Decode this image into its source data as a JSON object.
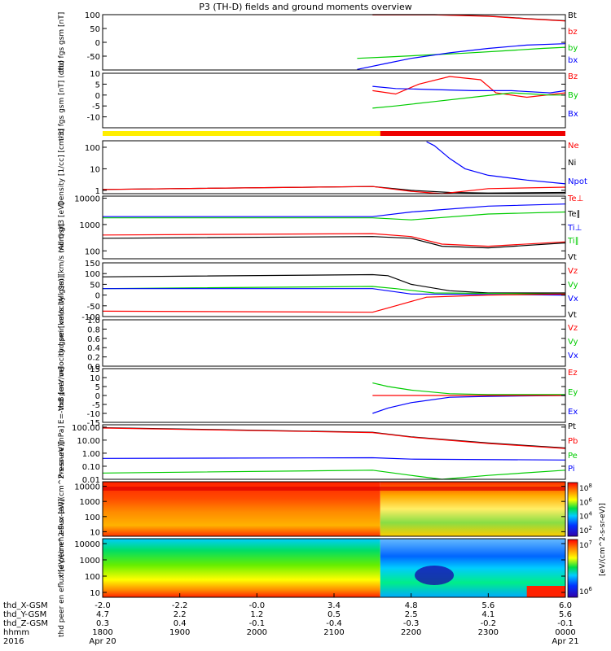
{
  "title": "P3 (TH-D) fields and ground moments overview",
  "x_ticks": [
    "1800",
    "1900",
    "2000",
    "2100",
    "2200",
    "2300",
    "0000"
  ],
  "footer": {
    "row_labels": [
      "thd_X-GSM",
      "thd_Y-GSM",
      "thd_Z-GSM",
      "hhmm",
      "2016"
    ],
    "positions": [
      [
        "-2.0",
        "-2.2",
        "-0.0",
        "3.4",
        "4.8",
        "5.6",
        "6.0"
      ],
      [
        "4.7",
        "2.2",
        "1.2",
        "0.5",
        "2.5",
        "4.1",
        "5.6"
      ],
      [
        "0.3",
        "0.4",
        "-0.1",
        "-0.4",
        "-0.3",
        "-0.2",
        "-0.1"
      ]
    ],
    "date_start": "Apr 20",
    "date_end": "Apr 21"
  },
  "colorbars": [
    {
      "label": "[eV/(cm^2-s-sr-eV)]",
      "ticks": [
        "10^8",
        "10^6",
        "10^4",
        "10^2"
      ]
    },
    {
      "label": "[eV/(cm^2-s-sr-eV)]",
      "ticks": [
        "10^7",
        "10^6"
      ]
    }
  ],
  "chart_data": [
    {
      "type": "line",
      "ylabel": "thd fgs gsm [nT]",
      "ylim": [
        -100,
        100
      ],
      "yticks": [
        "100",
        "50",
        "0",
        "-50"
      ],
      "legend": [
        {
          "label": "Bt",
          "color": "#000000"
        },
        {
          "label": "bz",
          "color": "#ff0000"
        },
        {
          "label": "by",
          "color": "#00cc00"
        },
        {
          "label": "bx",
          "color": "#0000ff"
        }
      ],
      "series": [
        {
          "color": "#000000",
          "x": [
            21.5,
            22.3,
            23.0,
            23.5,
            24.0
          ],
          "y": [
            100,
            100,
            95,
            86,
            78
          ]
        },
        {
          "color": "#ff0000",
          "x": [
            21.5,
            22.3,
            23.0,
            23.5,
            24.0
          ],
          "y": [
            99,
            99,
            94,
            85,
            77
          ]
        },
        {
          "color": "#00cc00",
          "x": [
            21.3,
            21.7,
            22.2,
            22.7,
            23.2,
            23.7,
            24.0
          ],
          "y": [
            -58,
            -53,
            -46,
            -39,
            -31,
            -22,
            -18
          ]
        },
        {
          "color": "#0000ff",
          "x": [
            21.3,
            21.7,
            22.0,
            22.5,
            23.0,
            23.5,
            24.0
          ],
          "y": [
            -98,
            -75,
            -58,
            -38,
            -22,
            -10,
            -5
          ]
        }
      ]
    },
    {
      "type": "line",
      "ylabel": "thd fgs gsm [nT] (dtb)",
      "ylim": [
        -15,
        10
      ],
      "yticks": [
        "10",
        "5",
        "0",
        "-5",
        "-10"
      ],
      "legend": [
        {
          "label": "Bz",
          "color": "#ff0000"
        },
        {
          "label": "By",
          "color": "#00cc00"
        },
        {
          "label": "Bx",
          "color": "#0000ff"
        }
      ],
      "series": [
        {
          "color": "#ff0000",
          "x": [
            21.5,
            21.8,
            22.1,
            22.5,
            22.9,
            23.1,
            23.5,
            24.0
          ],
          "y": [
            2,
            0.5,
            5,
            8.5,
            7,
            1,
            -1,
            1
          ]
        },
        {
          "color": "#00cc00",
          "x": [
            21.5,
            21.8,
            22.3,
            22.8,
            23.3,
            23.8,
            24.0
          ],
          "y": [
            -6,
            -5,
            -3,
            -1,
            1,
            0,
            0
          ]
        },
        {
          "color": "#0000ff",
          "x": [
            21.5,
            21.8,
            22.3,
            22.8,
            23.3,
            23.8,
            24.0
          ],
          "y": [
            4,
            3,
            2.5,
            2,
            2,
            1,
            2
          ]
        }
      ]
    },
    {
      "type": "line",
      "ylabel": "Density [1/cc] [cm-3]",
      "yscale": "log",
      "ylim": [
        0.7,
        200
      ],
      "yticks": [
        "100",
        "10",
        "1"
      ],
      "legend": [
        {
          "label": "Ne",
          "color": "#ff0000"
        },
        {
          "label": "Ni",
          "color": "#000000"
        },
        {
          "label": "Npot",
          "color": "#0000ff"
        }
      ],
      "series": [
        {
          "color": "#000000",
          "x": [
            18.0,
            21.5,
            22.0,
            22.5,
            23.0,
            24.0
          ],
          "y": [
            1.1,
            1.5,
            1.0,
            0.8,
            0.75,
            0.8
          ]
        },
        {
          "color": "#ff0000",
          "x": [
            18.0,
            21.5,
            22.0,
            22.4,
            23.0,
            24.0
          ],
          "y": [
            1.1,
            1.5,
            0.9,
            0.7,
            1.2,
            1.4
          ]
        },
        {
          "color": "#0000ff",
          "x": [
            22.2,
            22.3,
            22.5,
            22.7,
            23.0,
            23.5,
            24.0
          ],
          "y": [
            180,
            120,
            30,
            10,
            5,
            3,
            2
          ]
        }
      ]
    },
    {
      "type": "line",
      "ylabel": "mom gt3 [eV]",
      "yscale": "log",
      "ylim": [
        50,
        12000
      ],
      "yticks": [
        "10000",
        "1000",
        "100"
      ],
      "legend": [
        {
          "label": "Te⊥",
          "color": "#ff0000"
        },
        {
          "label": "Te∥",
          "color": "#000000"
        },
        {
          "label": "Ti⊥",
          "color": "#0000ff"
        },
        {
          "label": "Ti∥",
          "color": "#00cc00"
        }
      ],
      "series": [
        {
          "color": "#0000ff",
          "x": [
            18.0,
            21.5,
            22.0,
            23.0,
            24.0
          ],
          "y": [
            2000,
            2000,
            3000,
            5000,
            6000
          ]
        },
        {
          "color": "#00cc00",
          "x": [
            18.0,
            21.5,
            22.0,
            23.0,
            24.0
          ],
          "y": [
            1800,
            1800,
            1500,
            2500,
            3000
          ]
        },
        {
          "color": "#ff0000",
          "x": [
            18.0,
            21.5,
            22.0,
            22.4,
            23.0,
            24.0
          ],
          "y": [
            400,
            450,
            350,
            180,
            150,
            220
          ]
        },
        {
          "color": "#000000",
          "x": [
            18.0,
            21.5,
            22.0,
            22.4,
            23.0,
            24.0
          ],
          "y": [
            300,
            350,
            300,
            150,
            130,
            200
          ]
        }
      ]
    },
    {
      "type": "line",
      "ylabel": "thd peir velocity gsm [km/s (All Qs)]",
      "ylim": [
        -100,
        150
      ],
      "yticks": [
        "150",
        "100",
        "50",
        "0",
        "-50",
        "-100"
      ],
      "legend": [
        {
          "label": "Vt",
          "color": "#000000"
        },
        {
          "label": "Vz",
          "color": "#ff0000"
        },
        {
          "label": "Vy",
          "color": "#00cc00"
        },
        {
          "label": "Vx",
          "color": "#0000ff"
        }
      ],
      "series": [
        {
          "color": "#000000",
          "x": [
            18.0,
            21.5,
            21.7,
            22.0,
            22.5,
            23.0,
            24.0
          ],
          "y": [
            85,
            95,
            90,
            50,
            20,
            10,
            10
          ]
        },
        {
          "color": "#00cc00",
          "x": [
            18.0,
            21.5,
            21.8,
            22.3,
            24.0
          ],
          "y": [
            30,
            40,
            30,
            10,
            5
          ]
        },
        {
          "color": "#0000ff",
          "x": [
            18.0,
            21.5,
            22.0,
            24.0
          ],
          "y": [
            30,
            30,
            5,
            0
          ]
        },
        {
          "color": "#ff0000",
          "x": [
            18.0,
            21.5,
            21.8,
            22.2,
            23.0,
            24.0
          ],
          "y": [
            -75,
            -80,
            -50,
            -10,
            0,
            5
          ]
        }
      ]
    },
    {
      "type": "line",
      "ylabel": "thd peer velocity gsm [km/s (All Qs)]",
      "ylim": [
        0,
        1
      ],
      "yticks": [
        "1.0",
        "0.8",
        "0.6",
        "0.4",
        "0.2",
        "0.0"
      ],
      "legend": [
        {
          "label": "Vt",
          "color": "#000000"
        },
        {
          "label": "Vz",
          "color": "#ff0000"
        },
        {
          "label": "Vy",
          "color": "#00cc00"
        },
        {
          "label": "Vx",
          "color": "#0000ff"
        }
      ],
      "series": []
    },
    {
      "type": "line",
      "ylabel": "E=-VxB [mV/m]",
      "ylim": [
        -15,
        15
      ],
      "yticks": [
        "15",
        "10",
        "5",
        "0",
        "-5",
        "-10",
        "-15"
      ],
      "legend": [
        {
          "label": "Ez",
          "color": "#ff0000"
        },
        {
          "label": "Ey",
          "color": "#00cc00"
        },
        {
          "label": "Ex",
          "color": "#0000ff"
        }
      ],
      "series": [
        {
          "color": "#00cc00",
          "x": [
            21.5,
            21.7,
            22.0,
            22.5,
            23.0,
            24.0
          ],
          "y": [
            7,
            5,
            3,
            1,
            0.5,
            0.5
          ]
        },
        {
          "color": "#0000ff",
          "x": [
            21.5,
            21.7,
            22.0,
            22.5,
            23.0,
            24.0
          ],
          "y": [
            -10,
            -7,
            -4,
            -1,
            -0.5,
            0
          ]
        },
        {
          "color": "#ff0000",
          "x": [
            21.5,
            22.0,
            23.0,
            24.0
          ],
          "y": [
            0,
            0,
            0,
            0
          ]
        }
      ]
    },
    {
      "type": "line",
      "ylabel": "Pressure [nPa]",
      "yscale": "log",
      "ylim": [
        0.01,
        150
      ],
      "yticks": [
        "100.00",
        "10.00",
        "1.00",
        "0.10",
        "0.01"
      ],
      "legend": [
        {
          "label": "Pt",
          "color": "#000000"
        },
        {
          "label": "Pb",
          "color": "#ff0000"
        },
        {
          "label": "Pe",
          "color": "#00cc00"
        },
        {
          "label": "Pi",
          "color": "#0000ff"
        }
      ],
      "series": [
        {
          "color": "#000000",
          "x": [
            18.0,
            21.5,
            22.0,
            23.0,
            24.0
          ],
          "y": [
            90,
            40,
            18,
            6,
            2.5
          ]
        },
        {
          "color": "#ff0000",
          "x": [
            18.0,
            21.5,
            22.0,
            23.0,
            24.0
          ],
          "y": [
            85,
            38,
            17,
            5.5,
            2.3
          ]
        },
        {
          "color": "#0000ff",
          "x": [
            18.0,
            21.5,
            22.0,
            24.0
          ],
          "y": [
            0.4,
            0.45,
            0.35,
            0.3
          ]
        },
        {
          "color": "#00cc00",
          "x": [
            18.0,
            21.5,
            22.0,
            22.4,
            23.0,
            24.0
          ],
          "y": [
            0.03,
            0.05,
            0.02,
            0.01,
            0.02,
            0.05
          ]
        }
      ]
    },
    {
      "type": "heatmap",
      "ylabel": "thd peir en eflux [eV/(cm^2-s-sr-eV)]",
      "yscale": "log",
      "ylim": [
        5,
        20000
      ],
      "yticks": [
        "10000",
        "1000",
        "100",
        "10"
      ]
    },
    {
      "type": "heatmap",
      "ylabel": "thd peer en eflux [eV/(cm^2-s-sr-eV)]",
      "yscale": "log",
      "ylim": [
        5,
        20000
      ],
      "yticks": [
        "10000",
        "1000",
        "100",
        "10"
      ]
    }
  ]
}
